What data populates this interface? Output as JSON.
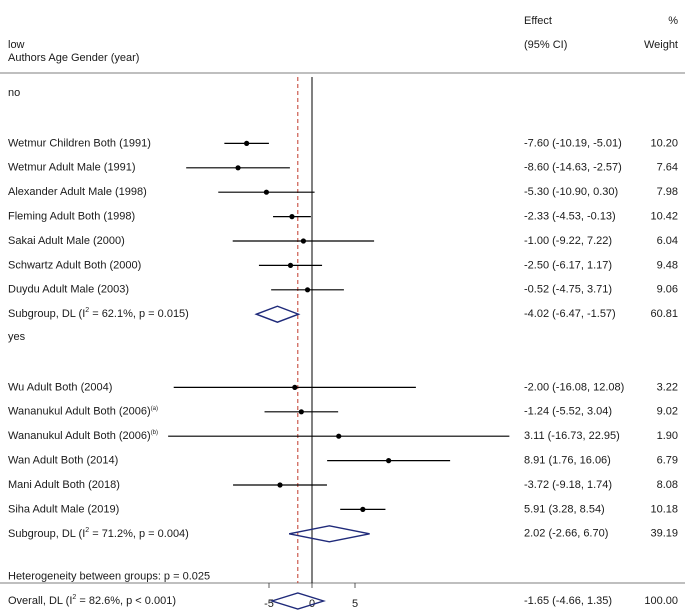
{
  "chart_data": {
    "type": "forest",
    "header": {
      "effect_label": "Effect",
      "ci_label": "(95% CI)",
      "pct_label": "%",
      "weight_label": "Weight",
      "group_var_label": "low",
      "study_label": "Authors Age Gender (year)"
    },
    "colors": {
      "point": "#000000",
      "diamond": "#1f2a7a",
      "overall_line": "#c0392b",
      "null_line": "#000000"
    },
    "axis": {
      "xlim": [
        -19,
        23
      ],
      "ticks": [
        -5,
        0,
        5
      ],
      "tick_labels": [
        "-5",
        "0",
        "5"
      ],
      "null_value": 0,
      "overall_effect": -1.65
    },
    "rows": [
      {
        "kind": "group_label",
        "text": "no"
      },
      {
        "kind": "study",
        "label": "Wetmur Children Both (1991)",
        "effect": -7.6,
        "lo": -10.19,
        "hi": -5.01,
        "ci_text": "-7.60 (-10.19, -5.01)",
        "weight": "10.20"
      },
      {
        "kind": "study",
        "label": "Wetmur Adult Male (1991)",
        "effect": -8.6,
        "lo": -14.63,
        "hi": -2.57,
        "ci_text": "-8.60 (-14.63, -2.57)",
        "weight": "7.64"
      },
      {
        "kind": "study",
        "label": "Alexander Adult Male (1998)",
        "effect": -5.3,
        "lo": -10.9,
        "hi": 0.3,
        "ci_text": "-5.30 (-10.90, 0.30)",
        "weight": "7.98"
      },
      {
        "kind": "study",
        "label": "Fleming Adult Both (1998)",
        "effect": -2.33,
        "lo": -4.53,
        "hi": -0.13,
        "ci_text": "-2.33 (-4.53, -0.13)",
        "weight": "10.42"
      },
      {
        "kind": "study",
        "label": "Sakai Adult Male (2000)",
        "effect": -1.0,
        "lo": -9.22,
        "hi": 7.22,
        "ci_text": "-1.00 (-9.22, 7.22)",
        "weight": "6.04"
      },
      {
        "kind": "study",
        "label": "Schwartz Adult Both (2000)",
        "effect": -2.5,
        "lo": -6.17,
        "hi": 1.17,
        "ci_text": "-2.50 (-6.17, 1.17)",
        "weight": "9.48"
      },
      {
        "kind": "study",
        "label": "Duydu Adult Male (2003)",
        "effect": -0.52,
        "lo": -4.75,
        "hi": 3.71,
        "ci_text": "-0.52 (-4.75, 3.71)",
        "weight": "9.06"
      },
      {
        "kind": "subgroup",
        "label_pre": "Subgroup, DL (I",
        "label_post": " = 62.1%, p = 0.015)",
        "effect": -4.02,
        "lo": -6.47,
        "hi": -1.57,
        "ci_text": "-4.02 (-6.47, -1.57)",
        "weight": "60.81"
      },
      {
        "kind": "spacer"
      },
      {
        "kind": "group_label",
        "text": "yes"
      },
      {
        "kind": "study",
        "label": "Wu Adult Both (2004)",
        "effect": -2.0,
        "lo": -16.08,
        "hi": 12.08,
        "ci_text": "-2.00 (-16.08, 12.08)",
        "weight": "3.22"
      },
      {
        "kind": "study",
        "label": "Wananukul Adult Both (2006)",
        "sup": "(a)",
        "effect": -1.24,
        "lo": -5.52,
        "hi": 3.04,
        "ci_text": "-1.24 (-5.52, 3.04)",
        "weight": "9.02"
      },
      {
        "kind": "study",
        "label": "Wananukul Adult Both (2006)",
        "sup": "(b)",
        "effect": 3.11,
        "lo": -16.73,
        "hi": 22.95,
        "ci_text": "3.11 (-16.73, 22.95)",
        "weight": "1.90"
      },
      {
        "kind": "study",
        "label": "Wan Adult Both (2014)",
        "effect": 8.91,
        "lo": 1.76,
        "hi": 16.06,
        "ci_text": "8.91 (1.76, 16.06)",
        "weight": "6.79"
      },
      {
        "kind": "study",
        "label": "Mani Adult Both (2018)",
        "effect": -3.72,
        "lo": -9.18,
        "hi": 1.74,
        "ci_text": "-3.72 (-9.18, 1.74)",
        "weight": "8.08"
      },
      {
        "kind": "study",
        "label": "Siha Adult Male (2019)",
        "effect": 5.91,
        "lo": 3.28,
        "hi": 8.54,
        "ci_text": "5.91 (3.28, 8.54)",
        "weight": "10.18"
      },
      {
        "kind": "subgroup",
        "label_pre": "Subgroup, DL (I",
        "label_post": " = 71.2%, p = 0.004)",
        "effect": 2.02,
        "lo": -2.66,
        "hi": 6.7,
        "ci_text": "2.02 (-2.66, 6.70)",
        "weight": "39.19"
      },
      {
        "kind": "spacer"
      },
      {
        "kind": "text_row",
        "text": "Heterogeneity between groups: p = 0.025"
      },
      {
        "kind": "overall",
        "label_pre": "Overall, DL (I",
        "label_post": " = 82.6%, p < 0.001)",
        "effect": -1.65,
        "lo": -4.66,
        "hi": 1.35,
        "ci_text": "-1.65 (-4.66, 1.35)",
        "weight": "100.00"
      }
    ]
  }
}
